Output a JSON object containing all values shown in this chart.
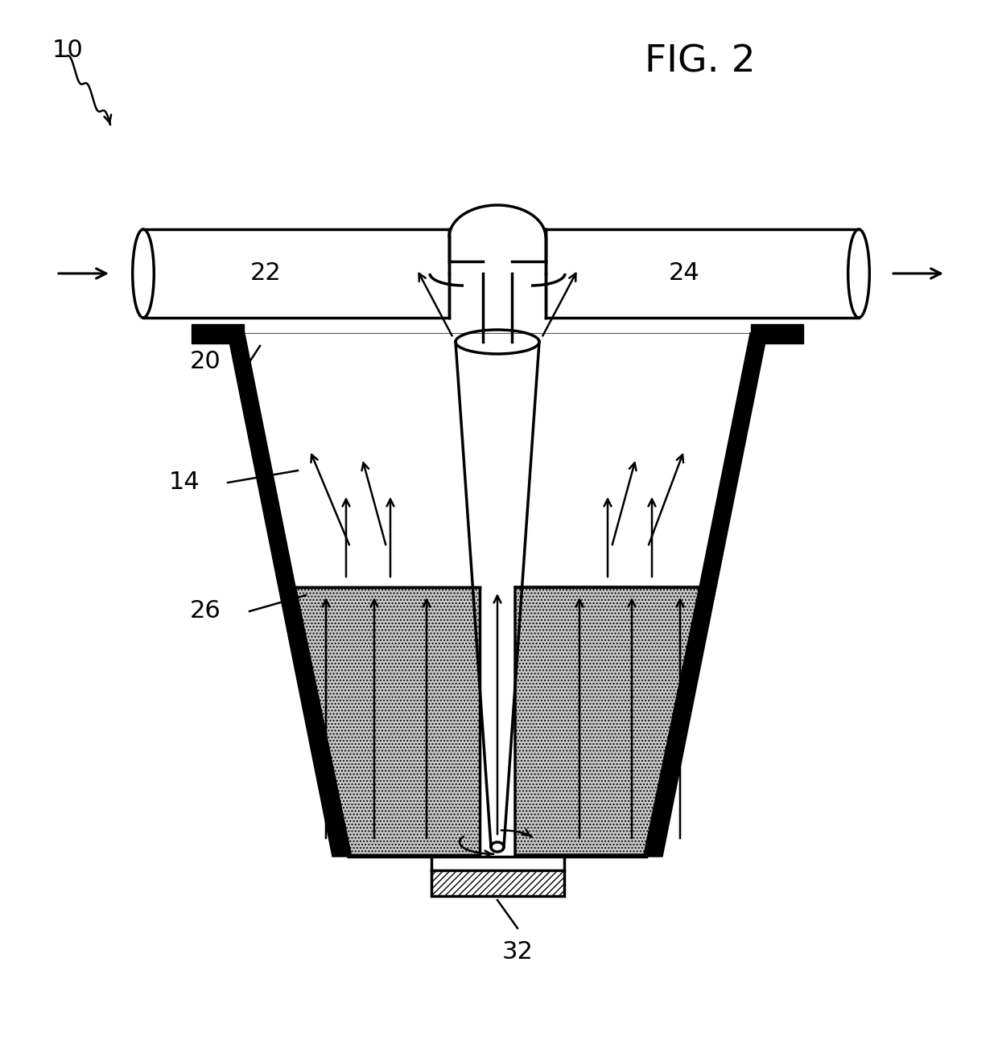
{
  "title": "FIG. 2",
  "label_10": "10",
  "label_14": "14",
  "label_20": "20",
  "label_22": "22",
  "label_24": "24",
  "label_26": "26",
  "label_32": "32",
  "bg_color": "#ffffff",
  "line_color": "#000000",
  "lw_wall": 10,
  "lw_med": 2.5,
  "lw_thin": 1.8
}
